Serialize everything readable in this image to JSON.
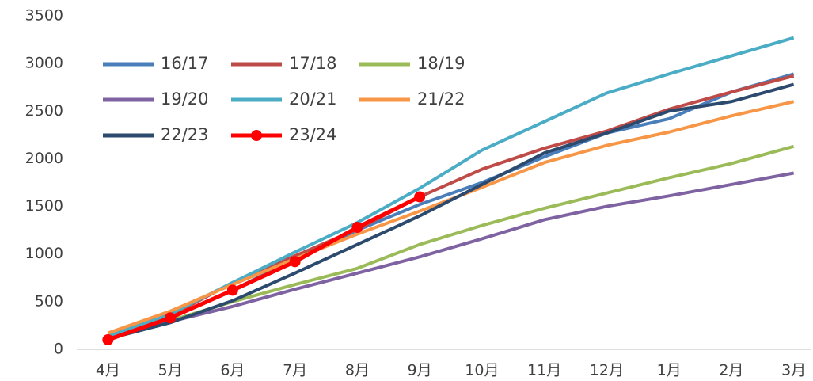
{
  "chart_data": {
    "type": "line",
    "categories": [
      "4月",
      "5月",
      "6月",
      "7月",
      "8月",
      "9月",
      "10月",
      "11月",
      "12月",
      "1月",
      "2月",
      "3月"
    ],
    "series": [
      {
        "name": "16/17",
        "color": "#4a7ebb",
        "values": [
          130,
          330,
          620,
          950,
          1250,
          1520,
          1750,
          2020,
          2270,
          2420,
          2700,
          2890
        ]
      },
      {
        "name": "17/18",
        "color": "#be4b48",
        "values": [
          150,
          350,
          700,
          980,
          1260,
          1600,
          1890,
          2110,
          2290,
          2520,
          2700,
          2870
        ]
      },
      {
        "name": "18/19",
        "color": "#9bbb59",
        "values": [
          120,
          300,
          500,
          680,
          850,
          1100,
          1300,
          1480,
          1640,
          1800,
          1950,
          2130
        ]
      },
      {
        "name": "19/20",
        "color": "#7e62a1",
        "values": [
          130,
          290,
          450,
          630,
          800,
          970,
          1160,
          1360,
          1500,
          1610,
          1730,
          1850
        ]
      },
      {
        "name": "20/21",
        "color": "#4bacc6",
        "values": [
          140,
          370,
          700,
          1020,
          1330,
          1690,
          2090,
          2390,
          2690,
          2890,
          3080,
          3270
        ]
      },
      {
        "name": "21/22",
        "color": "#f79646",
        "values": [
          170,
          400,
          680,
          950,
          1210,
          1450,
          1700,
          1960,
          2140,
          2280,
          2450,
          2600
        ]
      },
      {
        "name": "22/23",
        "color": "#2c4a6e",
        "values": [
          110,
          280,
          510,
          800,
          1100,
          1400,
          1730,
          2060,
          2270,
          2500,
          2600,
          2780
        ]
      },
      {
        "name": "23/24",
        "color": "#ff0000",
        "markers": true,
        "values": [
          100,
          330,
          620,
          920,
          1280,
          1600,
          null,
          null,
          null,
          null,
          null,
          null
        ]
      }
    ],
    "ylim": [
      0,
      3500
    ],
    "yticks": [
      0,
      500,
      1000,
      1500,
      2000,
      2500,
      3000,
      3500
    ],
    "grid": false,
    "legend": "upper left"
  }
}
